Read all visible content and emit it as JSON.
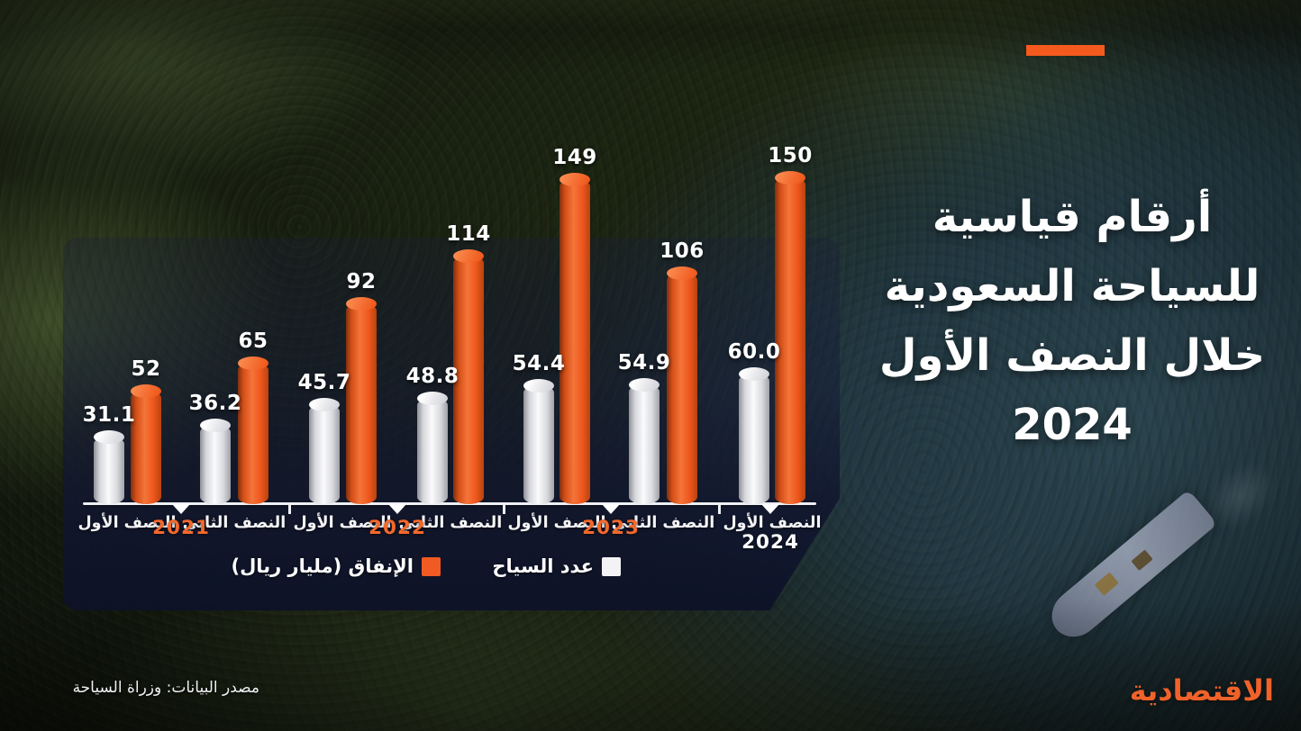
{
  "brand": {
    "logo_text": "الاقتصادية",
    "accent_color": "#f45a1d"
  },
  "title": {
    "lines": [
      "أرقام قياسية",
      "للسياحة السعودية",
      "خلال النصف الأول",
      "2024"
    ]
  },
  "legend": [
    {
      "label": "الإنفاق (مليار ريال)",
      "color": "#f15a22",
      "series": "spending"
    },
    {
      "label": "عدد السياح",
      "color": "#f3f3f5",
      "series": "tourists"
    }
  ],
  "source": {
    "text": "مصدر البيانات: وزراة السياحة"
  },
  "chart_data": {
    "type": "bar",
    "title": "أرقام قياسية للسياحة السعودية خلال النصف الأول 2024",
    "categories": [
      "النصف الأول 2021",
      "النصف الثاني 2021",
      "النصف الأول 2022",
      "النصف الثاني 2022",
      "النصف الأول 2023",
      "النصف الثاني 2023",
      "النصف الأول 2024"
    ],
    "category_half_labels": [
      "النصف الأول",
      "النصف الثاني",
      "النصف الأول",
      "النصف الثاني",
      "النصف الأول",
      "النصف الثاني",
      "النصف الأول"
    ],
    "year_markers": [
      "2021",
      "2022",
      "2023",
      "2024"
    ],
    "series": [
      {
        "name": "عدد السياح",
        "color": "#f3f3f5",
        "values": [
          31.1,
          36.2,
          45.7,
          48.8,
          54.4,
          54.9,
          60.0
        ],
        "value_labels": [
          "31.1",
          "36.2",
          "45.7",
          "48.8",
          "54.4",
          "54.9",
          "60.0"
        ]
      },
      {
        "name": "الإنفاق (مليار ريال)",
        "color": "#f15a22",
        "values": [
          52,
          65,
          92,
          114,
          149,
          106,
          150
        ],
        "value_labels": [
          "52",
          "65",
          "92",
          "114",
          "149",
          "106",
          "150"
        ]
      }
    ],
    "ylim": [
      0,
      160
    ],
    "grid": false,
    "legend_position": "bottom-center"
  }
}
